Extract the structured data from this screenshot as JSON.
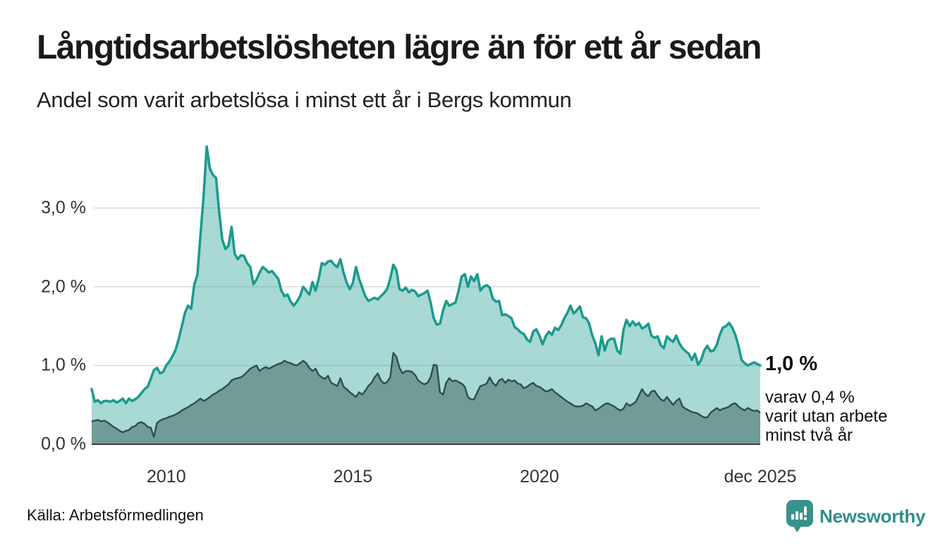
{
  "header": {
    "title": "Långtidsarbetslösheten lägre än för ett år sedan",
    "subtitle": "Andel som varit arbetslösa i minst ett år i Bergs kommun"
  },
  "annotation": {
    "end_value": "1,0 %",
    "sub_line1": "varav 0,4 %",
    "sub_line2": "varit utan arbete",
    "sub_line3": "minst två år"
  },
  "footer": {
    "source": "Källa: Arbetsförmedlingen",
    "logo_text": "Newsworthy"
  },
  "colors": {
    "series1_line": "#1A9A8E",
    "series1_fill": "rgba(26,154,142,0.38)",
    "series2_line": "#2F4F4B",
    "series2_fill": "rgba(47,79,75,0.45)",
    "gridline": "#DBDBDB",
    "baseline": "#3F3F3F",
    "logo_teal": "#38918B"
  },
  "chart_data": {
    "type": "area",
    "unit": "percent",
    "x_start": "2008-01",
    "x_end": "2025-12",
    "x_interval": "monthly",
    "ylim": [
      0,
      3.85
    ],
    "grid": "horizontal",
    "y_ticks": [
      {
        "value": 0,
        "label": "0,0 %"
      },
      {
        "value": 1,
        "label": "1,0 %"
      },
      {
        "value": 2,
        "label": "2,0 %"
      },
      {
        "value": 3,
        "label": "3,0 %"
      }
    ],
    "x_ticks": [
      {
        "month_index": 24,
        "label": "2010"
      },
      {
        "month_index": 84,
        "label": "2015"
      },
      {
        "month_index": 144,
        "label": "2020"
      },
      {
        "month_index": 215,
        "label": "dec 2025"
      }
    ],
    "series": [
      {
        "name": "Andel som varit arbetslösa i minst ett år",
        "end_value_pct": 1.0,
        "values": [
          0.7,
          0.54,
          0.56,
          0.52,
          0.55,
          0.55,
          0.54,
          0.56,
          0.53,
          0.55,
          0.58,
          0.52,
          0.58,
          0.55,
          0.57,
          0.6,
          0.65,
          0.7,
          0.73,
          0.83,
          0.94,
          0.97,
          0.9,
          0.92,
          1.0,
          1.05,
          1.12,
          1.2,
          1.34,
          1.5,
          1.67,
          1.76,
          1.72,
          2.03,
          2.15,
          2.66,
          3.15,
          3.78,
          3.5,
          3.42,
          3.38,
          2.95,
          2.6,
          2.48,
          2.52,
          2.76,
          2.42,
          2.35,
          2.4,
          2.39,
          2.3,
          2.25,
          2.03,
          2.09,
          2.18,
          2.25,
          2.22,
          2.18,
          2.2,
          2.15,
          2.1,
          1.95,
          1.88,
          1.9,
          1.81,
          1.76,
          1.81,
          1.88,
          2.0,
          1.95,
          1.9,
          2.06,
          1.95,
          2.1,
          2.3,
          2.28,
          2.32,
          2.33,
          2.28,
          2.25,
          2.35,
          2.18,
          2.05,
          1.97,
          2.05,
          2.25,
          2.1,
          1.99,
          1.88,
          1.82,
          1.84,
          1.86,
          1.84,
          1.88,
          1.92,
          1.97,
          2.1,
          2.28,
          2.21,
          1.97,
          1.95,
          1.99,
          1.93,
          1.96,
          1.94,
          1.88,
          1.9,
          1.92,
          1.95,
          1.8,
          1.6,
          1.52,
          1.53,
          1.7,
          1.82,
          1.76,
          1.78,
          1.8,
          1.95,
          2.13,
          2.16,
          2.0,
          2.13,
          2.07,
          2.16,
          1.95,
          2.0,
          2.02,
          1.99,
          1.85,
          1.81,
          1.82,
          1.64,
          1.65,
          1.63,
          1.6,
          1.49,
          1.46,
          1.42,
          1.4,
          1.33,
          1.3,
          1.43,
          1.46,
          1.38,
          1.27,
          1.37,
          1.43,
          1.39,
          1.48,
          1.45,
          1.51,
          1.6,
          1.67,
          1.76,
          1.66,
          1.7,
          1.75,
          1.61,
          1.6,
          1.53,
          1.38,
          1.28,
          1.13,
          1.37,
          1.19,
          1.31,
          1.34,
          1.34,
          1.19,
          1.15,
          1.45,
          1.58,
          1.5,
          1.56,
          1.51,
          1.54,
          1.47,
          1.49,
          1.53,
          1.38,
          1.35,
          1.37,
          1.26,
          1.22,
          1.37,
          1.33,
          1.3,
          1.38,
          1.28,
          1.22,
          1.18,
          1.15,
          1.07,
          1.15,
          1.01,
          1.07,
          1.19,
          1.25,
          1.18,
          1.19,
          1.26,
          1.39,
          1.48,
          1.5,
          1.54,
          1.48,
          1.39,
          1.25,
          1.07,
          1.03,
          1.0,
          1.02,
          1.04,
          1.02,
          1.0
        ]
      },
      {
        "name": "varav varit utan arbete minst två år",
        "end_value_pct": 0.4,
        "values": [
          0.29,
          0.3,
          0.31,
          0.29,
          0.3,
          0.28,
          0.25,
          0.22,
          0.2,
          0.17,
          0.15,
          0.17,
          0.18,
          0.22,
          0.23,
          0.27,
          0.28,
          0.26,
          0.22,
          0.21,
          0.09,
          0.27,
          0.3,
          0.32,
          0.33,
          0.35,
          0.36,
          0.38,
          0.4,
          0.43,
          0.45,
          0.47,
          0.5,
          0.52,
          0.55,
          0.58,
          0.55,
          0.57,
          0.6,
          0.63,
          0.65,
          0.68,
          0.7,
          0.73,
          0.76,
          0.81,
          0.83,
          0.84,
          0.85,
          0.88,
          0.92,
          0.96,
          0.98,
          1.0,
          0.93,
          0.96,
          0.98,
          0.96,
          0.98,
          1.0,
          1.02,
          1.03,
          1.06,
          1.04,
          1.03,
          1.01,
          1.0,
          1.03,
          1.06,
          1.03,
          0.97,
          0.93,
          0.96,
          0.88,
          0.85,
          0.83,
          0.87,
          0.78,
          0.76,
          0.74,
          0.84,
          0.73,
          0.7,
          0.66,
          0.63,
          0.6,
          0.66,
          0.63,
          0.68,
          0.74,
          0.78,
          0.85,
          0.9,
          0.81,
          0.77,
          0.79,
          0.85,
          1.16,
          1.11,
          0.97,
          0.9,
          0.93,
          0.93,
          0.92,
          0.88,
          0.81,
          0.78,
          0.76,
          0.78,
          0.85,
          1.01,
          1.0,
          0.66,
          0.63,
          0.78,
          0.84,
          0.8,
          0.81,
          0.79,
          0.77,
          0.73,
          0.6,
          0.57,
          0.57,
          0.66,
          0.74,
          0.75,
          0.77,
          0.85,
          0.78,
          0.74,
          0.81,
          0.83,
          0.78,
          0.82,
          0.8,
          0.81,
          0.77,
          0.76,
          0.71,
          0.73,
          0.76,
          0.78,
          0.74,
          0.73,
          0.7,
          0.67,
          0.68,
          0.7,
          0.66,
          0.63,
          0.6,
          0.57,
          0.54,
          0.52,
          0.49,
          0.48,
          0.48,
          0.49,
          0.52,
          0.5,
          0.48,
          0.43,
          0.45,
          0.48,
          0.51,
          0.52,
          0.5,
          0.48,
          0.45,
          0.43,
          0.45,
          0.52,
          0.49,
          0.51,
          0.54,
          0.62,
          0.7,
          0.64,
          0.61,
          0.67,
          0.68,
          0.62,
          0.57,
          0.55,
          0.6,
          0.55,
          0.5,
          0.55,
          0.58,
          0.48,
          0.45,
          0.43,
          0.41,
          0.4,
          0.39,
          0.36,
          0.34,
          0.34,
          0.4,
          0.43,
          0.46,
          0.43,
          0.45,
          0.46,
          0.48,
          0.51,
          0.52,
          0.48,
          0.45,
          0.43,
          0.46,
          0.44,
          0.42,
          0.43,
          0.4
        ]
      }
    ]
  }
}
